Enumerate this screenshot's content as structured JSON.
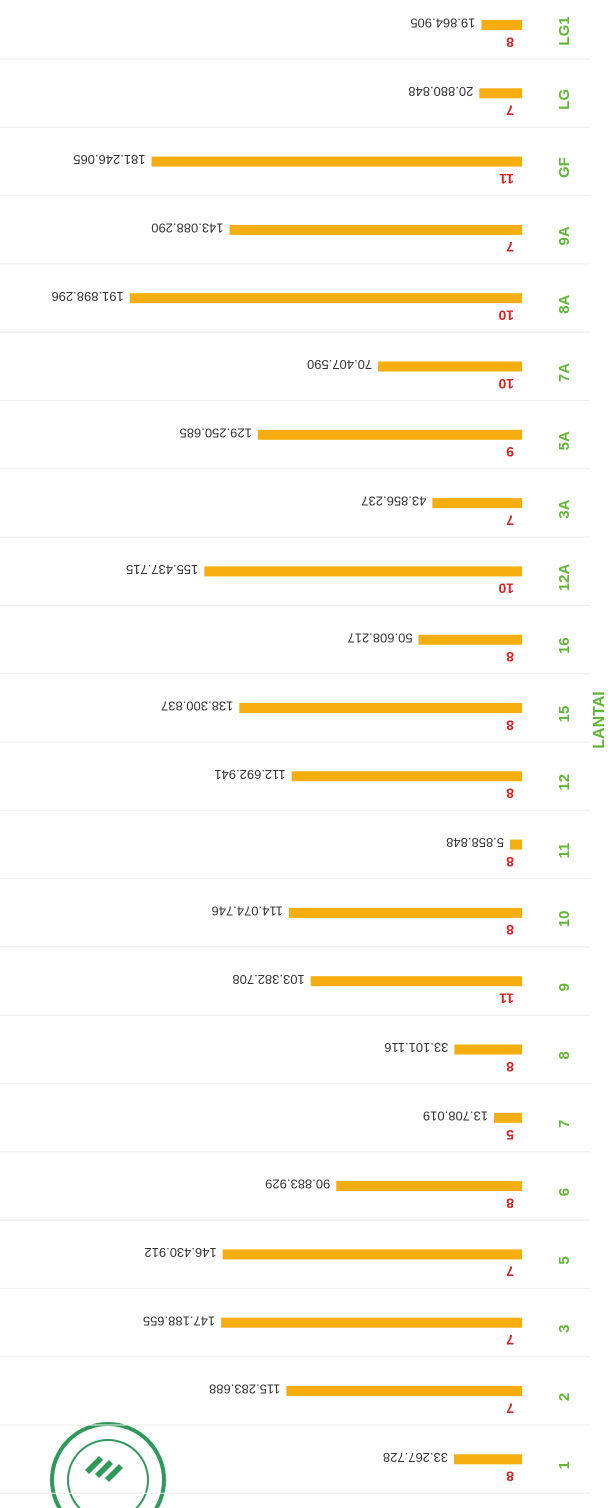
{
  "chart_data": {
    "type": "bar",
    "orientation": "horizontal",
    "axis_label": "LANTAI",
    "categories": [
      "LG1",
      "LG",
      "GF",
      "9A",
      "8A",
      "7A",
      "5A",
      "3A",
      "12A",
      "16",
      "15",
      "12",
      "11",
      "10",
      "9",
      "8",
      "7",
      "6",
      "5",
      "3",
      "2",
      "1"
    ],
    "values": [
      19864905,
      20880848,
      181246065,
      143088290,
      191898296,
      70407590,
      129250685,
      43856237,
      155437715,
      50608217,
      138300837,
      112692941,
      5858848,
      114074746,
      103382708,
      33101116,
      13708019,
      90883929,
      146430912,
      147188655,
      115283688,
      33267728
    ],
    "value_labels": [
      "19.864.905",
      "20.880.848",
      "181.246.065",
      "143.088.290",
      "191.898.296",
      "70.407.590",
      "129.250.685",
      "43.856.237",
      "155.437.715",
      "50.608.217",
      "138.300.837",
      "112.692.941",
      "5.858.848",
      "114.074.746",
      "103.382.708",
      "33.101.116",
      "13.708.019",
      "90.883.929",
      "146.430.912",
      "147.188.655",
      "115.283.688",
      "33.267.728"
    ],
    "counts": [
      8,
      7,
      11,
      7,
      10,
      10,
      9,
      7,
      10,
      8,
      8,
      8,
      8,
      8,
      11,
      8,
      5,
      8,
      7,
      7,
      7,
      8
    ],
    "color": "#f5ad0f",
    "count_color": "#e02020",
    "category_color": "#5fb832",
    "xlim": [
      0,
      250000000
    ]
  }
}
